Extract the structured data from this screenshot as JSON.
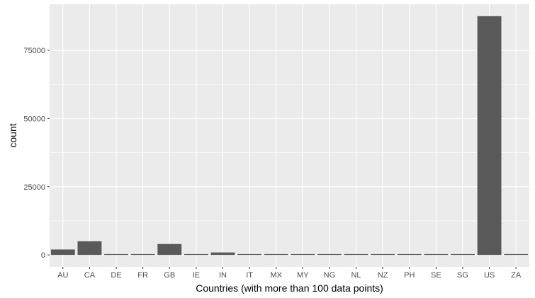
{
  "chart_data": {
    "type": "bar",
    "xlabel": "Countries (with more than 100 data points)",
    "ylabel": "count",
    "categories": [
      "AU",
      "CA",
      "DE",
      "FR",
      "GB",
      "IE",
      "IN",
      "IT",
      "MX",
      "MY",
      "NG",
      "NL",
      "NZ",
      "PH",
      "SE",
      "SG",
      "US",
      "ZA"
    ],
    "values": [
      2000,
      5000,
      300,
      100,
      4000,
      100,
      900,
      100,
      120,
      250,
      250,
      250,
      250,
      250,
      100,
      250,
      87500,
      250
    ],
    "ylim": [
      -4375,
      91875
    ],
    "yticks": [
      0,
      25000,
      50000,
      75000
    ],
    "ytick_labels": [
      "0",
      "25000",
      "50000",
      "75000"
    ],
    "grid": true,
    "colors": {
      "panel": "#ebebeb",
      "grid_major": "#ffffff",
      "bar": "#595959",
      "tick_text": "#4d4d4d",
      "tick_mark": "#333333"
    }
  }
}
